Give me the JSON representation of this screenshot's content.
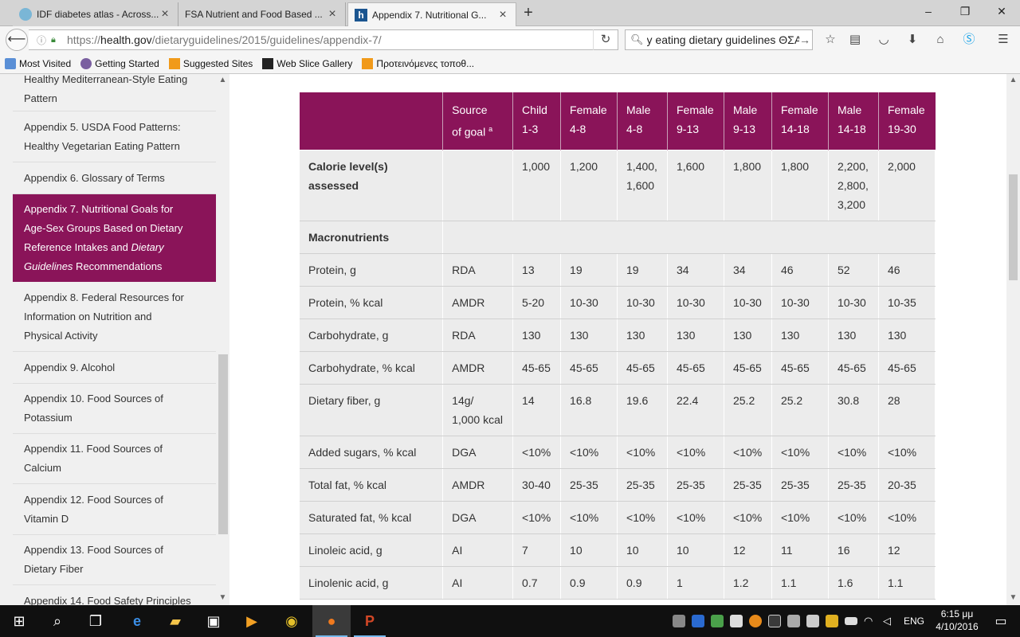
{
  "browser": {
    "tabs": [
      {
        "title": "IDF diabetes atlas - Across...",
        "active": false
      },
      {
        "title": "FSA Nutrient and Food Based ...",
        "active": false
      },
      {
        "title": "Appendix 7. Nutritional G...",
        "active": true
      }
    ],
    "url": {
      "prefix": "https://",
      "host": "health.gov",
      "path": "/dietaryguidelines/2015/guidelines/appendix-7/"
    },
    "search_query": "y eating dietary guidelines ΘΣΑ",
    "window_controls": {
      "minimize": "–",
      "maximize": "❐",
      "close": "✕"
    }
  },
  "bookmarks": [
    {
      "label": "Most Visited",
      "icon": "folder-icon"
    },
    {
      "label": "Getting Started",
      "icon": "gear-icon"
    },
    {
      "label": "Suggested Sites",
      "icon": "suggested-icon"
    },
    {
      "label": "Web Slice Gallery",
      "icon": "webslice-icon"
    },
    {
      "label": "Προτεινόμενες τοποθ...",
      "icon": "suggested-icon"
    }
  ],
  "sidebar": {
    "items": [
      {
        "line1": "Healthy Mediterranean-Style Eating",
        "line2": "Pattern",
        "line3": ""
      },
      {
        "line1": "Appendix 5. USDA Food Patterns:",
        "line2": "Healthy Vegetarian Eating Pattern",
        "line3": ""
      },
      {
        "line1": "Appendix 6. Glossary of Terms",
        "line2": "",
        "line3": ""
      },
      {
        "line1": "Appendix 7. Nutritional Goals for",
        "line2": "Age-Sex Groups Based on Dietary",
        "line3": "Reference Intakes and",
        "line3_em": "Dietary",
        "line4_em": "Guidelines",
        "line4": " Recommendations"
      },
      {
        "line1": "Appendix 8. Federal Resources for",
        "line2": "Information on Nutrition and",
        "line3": "Physical Activity"
      },
      {
        "line1": "Appendix 9. Alcohol",
        "line2": "",
        "line3": ""
      },
      {
        "line1": "Appendix 10. Food Sources of",
        "line2": "Potassium",
        "line3": ""
      },
      {
        "line1": "Appendix 11. Food Sources of",
        "line2": "Calcium",
        "line3": ""
      },
      {
        "line1": "Appendix 12. Food Sources of",
        "line2": "Vitamin D",
        "line3": ""
      },
      {
        "line1": "Appendix 13. Food Sources of",
        "line2": "Dietary Fiber",
        "line3": ""
      },
      {
        "line1": "Appendix 14. Food Safety Principles",
        "line2": "",
        "line3": ""
      }
    ]
  },
  "table": {
    "headers": [
      {
        "l1": "",
        "l2": ""
      },
      {
        "l1": "Source",
        "l2": "of goal",
        "sup": "a"
      },
      {
        "l1": "Child",
        "l2": "1-3"
      },
      {
        "l1": "Female",
        "l2": "4-8"
      },
      {
        "l1": "Male",
        "l2": "4-8"
      },
      {
        "l1": "Female",
        "l2": "9-13"
      },
      {
        "l1": "Male",
        "l2": "9-13"
      },
      {
        "l1": "Female",
        "l2": "14-18"
      },
      {
        "l1": "Male",
        "l2": "14-18"
      },
      {
        "l1": "Female",
        "l2": "19-30"
      }
    ],
    "calorie_row": {
      "label1": "Calorie level(s)",
      "label2": "assessed",
      "source": "",
      "values": [
        "1,000",
        "1,200",
        "1,400,\n1,600",
        "1,600",
        "1,800",
        "1,800",
        "2,200,\n2,800,\n3,200",
        "2,000"
      ]
    },
    "section": "Macronutrients",
    "rows": [
      {
        "label": "Protein, g",
        "source": "RDA",
        "values": [
          "13",
          "19",
          "19",
          "34",
          "34",
          "46",
          "52",
          "46"
        ]
      },
      {
        "label": "Protein, % kcal",
        "source": "AMDR",
        "values": [
          "5-20",
          "10-30",
          "10-30",
          "10-30",
          "10-30",
          "10-30",
          "10-30",
          "10-35"
        ]
      },
      {
        "label": "Carbohydrate, g",
        "source": "RDA",
        "values": [
          "130",
          "130",
          "130",
          "130",
          "130",
          "130",
          "130",
          "130"
        ]
      },
      {
        "label": "Carbohydrate, % kcal",
        "source": "AMDR",
        "values": [
          "45-65",
          "45-65",
          "45-65",
          "45-65",
          "45-65",
          "45-65",
          "45-65",
          "45-65"
        ]
      },
      {
        "label": "Dietary fiber, g",
        "source": "14g/\n1,000 kcal",
        "values": [
          "14",
          "16.8",
          "19.6",
          "22.4",
          "25.2",
          "25.2",
          "30.8",
          "28"
        ]
      },
      {
        "label": "Added sugars, % kcal",
        "source": "DGA",
        "values": [
          "<10%",
          "<10%",
          "<10%",
          "<10%",
          "<10%",
          "<10%",
          "<10%",
          "<10%"
        ]
      },
      {
        "label": "Total fat, % kcal",
        "source": "AMDR",
        "values": [
          "30-40",
          "25-35",
          "25-35",
          "25-35",
          "25-35",
          "25-35",
          "25-35",
          "20-35"
        ]
      },
      {
        "label": "Saturated fat, % kcal",
        "source": "DGA",
        "values": [
          "<10%",
          "<10%",
          "<10%",
          "<10%",
          "<10%",
          "<10%",
          "<10%",
          "<10%"
        ]
      },
      {
        "label": "Linoleic acid, g",
        "source": "AI",
        "values": [
          "7",
          "10",
          "10",
          "10",
          "12",
          "11",
          "16",
          "12"
        ]
      },
      {
        "label": "Linolenic acid, g",
        "source": "AI",
        "values": [
          "0.7",
          "0.9",
          "0.9",
          "1",
          "1.2",
          "1.1",
          "1.6",
          "1.1"
        ]
      }
    ]
  },
  "taskbar": {
    "language": "ENG",
    "time": "6:15 μμ",
    "date": "4/10/2016"
  },
  "colors": {
    "accent": "#8a1459",
    "cell_bg": "#ececec"
  }
}
